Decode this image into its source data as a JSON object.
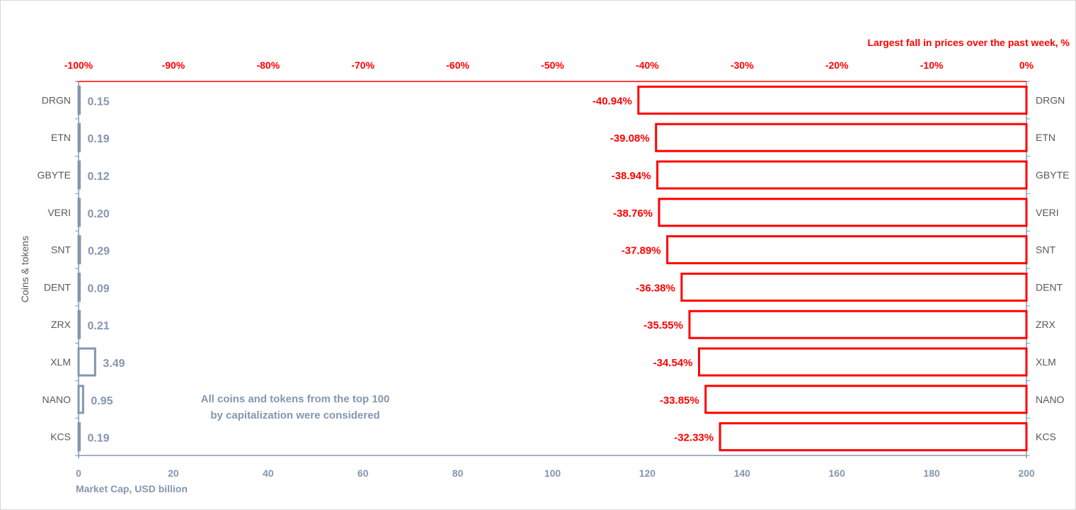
{
  "chart_data": {
    "type": "bar",
    "categories": [
      "DRGN",
      "ETN",
      "GBYTE",
      "VERI",
      "SNT",
      "DENT",
      "ZRX",
      "XLM",
      "NANO",
      "KCS"
    ],
    "series": [
      {
        "name": "Market Cap,  USD billion",
        "axis": "bottom",
        "values": [
          0.15,
          0.19,
          0.12,
          0.2,
          0.29,
          0.09,
          0.21,
          3.49,
          0.95,
          0.19
        ],
        "labels": [
          "0.15",
          "0.19",
          "0.12",
          "0.20",
          "0.29",
          "0.09",
          "0.21",
          "3.49",
          "0.95",
          "0.19"
        ],
        "color": "#8496b0"
      },
      {
        "name": "Largest fall in prices over the past week, %",
        "axis": "top",
        "values": [
          -40.94,
          -39.08,
          -38.94,
          -38.76,
          -37.89,
          -36.38,
          -35.55,
          -34.54,
          -33.85,
          -32.33
        ],
        "labels": [
          "-40.94%",
          "-39.08%",
          "-38.94%",
          "-38.76%",
          "-37.89%",
          "-36.38%",
          "-35.55%",
          "-34.54%",
          "-33.85%",
          "-32.33%"
        ],
        "color": "#ff0000"
      }
    ],
    "top_axis": {
      "title": "Largest fall in prices over the past week, %",
      "range": [
        -100,
        0
      ],
      "ticks": [
        "-100%",
        "-90%",
        "-80%",
        "-70%",
        "-60%",
        "-50%",
        "-40%",
        "-30%",
        "-20%",
        "-10%",
        "0%"
      ]
    },
    "bottom_axis": {
      "title": "Market Cap,  USD billion",
      "range": [
        0,
        200
      ],
      "ticks": [
        "0",
        "20",
        "40",
        "60",
        "80",
        "100",
        "120",
        "140",
        "160",
        "180",
        "200"
      ]
    },
    "y_axis_title": "Coins & tokens",
    "grid": false,
    "legend": "none",
    "annotation": "All coins and tokens from the top 100 by capitalization were considered"
  }
}
